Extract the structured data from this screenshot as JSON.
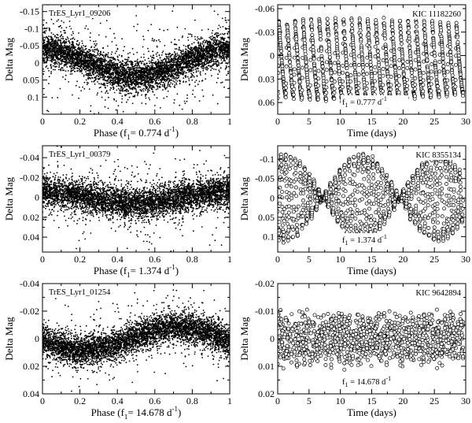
{
  "chart_data": [
    {
      "type": "scatter",
      "star": "TrES_Lyr1_09206",
      "xlabel": "Phase (f",
      "xlabel_sub": "1",
      "xlabel_rest": "= 0.774 d",
      "xlabel_sup": "-1",
      "xlabel_close": ")",
      "ylabel": "Delta Mag",
      "xlim": [
        0,
        1
      ],
      "ylim": [
        0.15,
        -0.17
      ],
      "xticks": [
        0,
        0.2,
        0.4,
        0.6,
        0.8,
        1
      ],
      "xtick_labels": [
        "0",
        "0.2",
        "0.4",
        "0.6",
        "0.8",
        "1"
      ],
      "yticks": [
        -0.15,
        -0.1,
        -0.05,
        0,
        0.05,
        0.1
      ],
      "ytick_labels": [
        "-0.15",
        "-0.1",
        "-0.05",
        "0",
        "0.05",
        "0.1"
      ],
      "model": {
        "kind": "phase",
        "amplitude": 0.04,
        "phase_of_max": 0.0,
        "scatter": 0.022,
        "n": 5200,
        "outlier_sd": 0.06,
        "outlier_frac": 0.12
      }
    },
    {
      "type": "scatter",
      "star": "KIC 11182260",
      "xlabel": "Time (days)",
      "ylabel": "Delta Mag",
      "annotation_main": "f",
      "annotation_sub": "1",
      "annotation_rest": " = 0.777 d",
      "annotation_sup": "-1",
      "xlim": [
        0,
        30
      ],
      "ylim": [
        0.075,
        -0.065
      ],
      "xticks": [
        0,
        5,
        10,
        15,
        20,
        25,
        30
      ],
      "xtick_labels": [
        "0",
        "5",
        "10",
        "15",
        "20",
        "25",
        "30"
      ],
      "yticks": [
        -0.06,
        -0.03,
        0,
        0.03,
        0.06
      ],
      "ytick_labels": [
        "-0.06",
        "-0.03",
        "0",
        "0.03",
        "0.06"
      ],
      "model": {
        "kind": "time",
        "frequency": 0.777,
        "amplitude": 0.048,
        "cadence": 0.0204,
        "scatter": 0.0015,
        "t_end": 29.6,
        "offset": 0.004,
        "mod_amp": 0.1,
        "mod_freq": 0.02
      }
    },
    {
      "type": "scatter",
      "star": "TrES_Lyr1_00379",
      "xlabel": "Phase (f",
      "xlabel_sub": "1",
      "xlabel_rest": "= 1.374 d",
      "xlabel_sup": "-1",
      "xlabel_close": ")",
      "ylabel": "Delta Mag",
      "xlim": [
        0,
        1
      ],
      "ylim": [
        0.055,
        -0.052
      ],
      "xticks": [
        0,
        0.2,
        0.4,
        0.6,
        0.8,
        1
      ],
      "xtick_labels": [
        "0",
        "0.2",
        "0.4",
        "0.6",
        "0.8",
        "1"
      ],
      "yticks": [
        -0.04,
        -0.02,
        0,
        0.02,
        0.04
      ],
      "ytick_labels": [
        "-0.04",
        "-0.02",
        "0",
        "0.02",
        "0.04"
      ],
      "model": {
        "kind": "phase",
        "amplitude": 0.006,
        "phase_of_max": 0.0,
        "scatter": 0.0075,
        "n": 5200,
        "outlier_sd": 0.018,
        "outlier_frac": 0.12
      }
    },
    {
      "type": "scatter",
      "star": "KIC 8355134",
      "xlabel": "Time (days)",
      "ylabel": "Delta Mag",
      "annotation_main": "f",
      "annotation_sub": "1",
      "annotation_rest": " = 1.374 d",
      "annotation_sup": "-1",
      "xlim": [
        0,
        30
      ],
      "ylim": [
        0.14,
        -0.135
      ],
      "xticks": [
        0,
        5,
        10,
        15,
        20,
        25,
        30
      ],
      "xtick_labels": [
        "0",
        "5",
        "10",
        "15",
        "20",
        "25",
        "30"
      ],
      "yticks": [
        -0.1,
        -0.05,
        0,
        0.05,
        0.1
      ],
      "ytick_labels": [
        "-0.1",
        "-0.05",
        "0",
        "0.05",
        "0.1"
      ],
      "model": {
        "kind": "beat",
        "f1": 1.374,
        "f2": 1.292,
        "a1": 0.055,
        "a2": 0.055,
        "cadence": 0.0204,
        "scatter": 0.004,
        "t_end": 29.6
      }
    },
    {
      "type": "scatter",
      "star": "TrES_Lyr1_01254",
      "xlabel": "Phase (f",
      "xlabel_sub": "1",
      "xlabel_rest": "= 14.678 d",
      "xlabel_sup": "-1",
      "xlabel_close": ")",
      "ylabel": "Delta Mag",
      "xlim": [
        0,
        1
      ],
      "ylim": [
        0.04,
        -0.04
      ],
      "xticks": [
        0,
        0.2,
        0.4,
        0.6,
        0.8,
        1
      ],
      "xtick_labels": [
        "0",
        "0.2",
        "0.4",
        "0.6",
        "0.8",
        "1"
      ],
      "yticks": [
        -0.04,
        -0.02,
        0,
        0.02,
        0.04
      ],
      "ytick_labels": [
        "-0.04",
        "-0.02",
        "0",
        "0.02",
        "0.04"
      ],
      "model": {
        "kind": "phase",
        "amplitude": 0.008,
        "phase_of_max": 0.72,
        "scatter": 0.0055,
        "n": 5200,
        "outlier_sd": 0.012,
        "outlier_frac": 0.1
      }
    },
    {
      "type": "scatter",
      "star": "KIC 9642894",
      "xlabel": "Time (days)",
      "ylabel": "Delta Mag",
      "annotation_main": "f",
      "annotation_sub": "1",
      "annotation_rest": " = 14.678 d",
      "annotation_sup": "-1",
      "xlim": [
        0,
        30
      ],
      "ylim": [
        0.02,
        -0.02
      ],
      "xticks": [
        0,
        5,
        10,
        15,
        20,
        25,
        30
      ],
      "xtick_labels": [
        "0",
        "5",
        "10",
        "15",
        "20",
        "25",
        "30"
      ],
      "yticks": [
        -0.02,
        -0.01,
        0,
        0.01,
        0.02
      ],
      "ytick_labels": [
        "-0.02",
        "-0.01",
        "0",
        "0.01",
        "0.02"
      ],
      "model": {
        "kind": "multi",
        "freqs": [
          14.678,
          12.31,
          0.91
        ],
        "amps": [
          0.0055,
          0.003,
          0.0012
        ],
        "cadence": 0.0204,
        "scatter": 0.0012,
        "t_end": 29.6,
        "n_points": 1100
      }
    }
  ]
}
